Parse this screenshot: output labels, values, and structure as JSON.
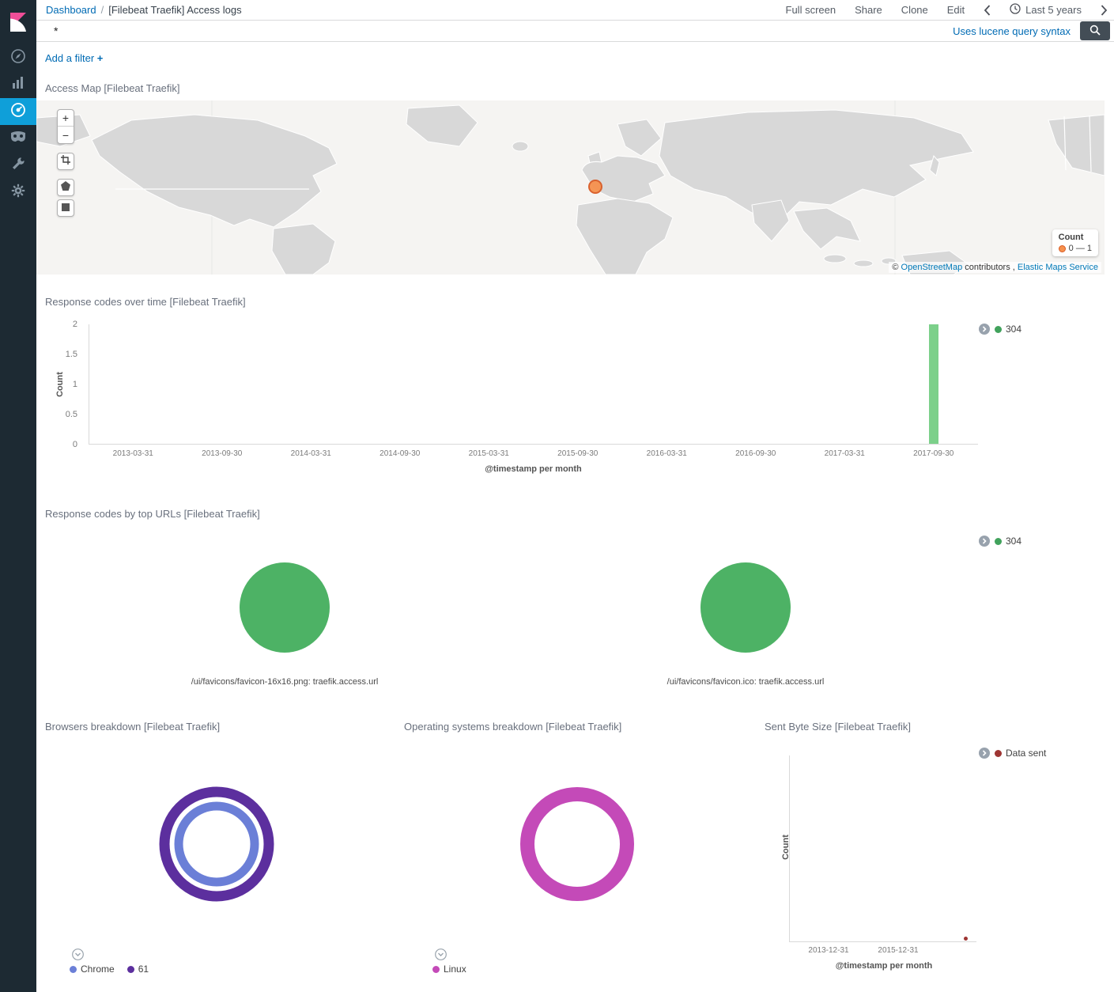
{
  "header": {
    "breadcrumb": {
      "root": "Dashboard",
      "separator": "/",
      "current": "[Filebeat Traefik] Access logs"
    },
    "actions": [
      {
        "label": "Full screen"
      },
      {
        "label": "Share"
      },
      {
        "label": "Clone"
      },
      {
        "label": "Edit"
      }
    ],
    "time_picker": {
      "label": "Last 5 years"
    }
  },
  "query_bar": {
    "value": "*",
    "hint": "Uses lucene query syntax"
  },
  "filter_bar": {
    "label": "Add a filter",
    "plus": "+"
  },
  "sidebar": {
    "icons": [
      "kibana-logo",
      "compass",
      "bar-chart",
      "dashboard",
      "timelion-mask",
      "wrench",
      "gear"
    ],
    "active": "dashboard",
    "active_color": "#0f9fd9"
  },
  "map_panel": {
    "title": "Access Map [Filebeat Traefik]",
    "zoom_in": "+",
    "zoom_out": "−",
    "marker_color": "#f6914d",
    "legend": {
      "title": "Count",
      "range_label": "0 — 1",
      "dot_color": "#f6914d"
    },
    "attribution": {
      "copyright": "©",
      "osm": "OpenStreetMap",
      "middle": "contributors ,",
      "elastic": "Elastic Maps Service"
    }
  },
  "chart_data": [
    {
      "id": "response_codes_over_time",
      "type": "bar",
      "title": "Response codes over time [Filebeat Traefik]",
      "xlabel": "@timestamp per month",
      "ylabel": "Count",
      "ylim": [
        0,
        2
      ],
      "yticks": [
        0,
        0.5,
        1,
        1.5,
        2
      ],
      "categories": [
        "2013-03-31",
        "2013-09-30",
        "2014-03-31",
        "2014-09-30",
        "2015-03-31",
        "2015-09-30",
        "2016-03-31",
        "2016-09-30",
        "2017-03-31",
        "2017-09-30"
      ],
      "series": [
        {
          "name": "304",
          "color": "#7cd08a",
          "values": [
            0,
            0,
            0,
            0,
            0,
            0,
            0,
            0,
            0,
            2
          ]
        }
      ],
      "grid": false,
      "legend": {
        "position": "right",
        "items": [
          {
            "label": "304",
            "color": "#41a25c"
          }
        ]
      }
    },
    {
      "id": "response_codes_by_top_urls",
      "type": "pie",
      "title": "Response codes by top URLs [Filebeat Traefik]",
      "pies": [
        {
          "label": "/ui/favicons/favicon-16x16.png: traefik.access.url",
          "slices": [
            {
              "name": "304",
              "value": 100,
              "color": "#4db265"
            }
          ]
        },
        {
          "label": "/ui/favicons/favicon.ico: traefik.access.url",
          "slices": [
            {
              "name": "304",
              "value": 100,
              "color": "#4db265"
            }
          ]
        }
      ],
      "legend": {
        "position": "right",
        "items": [
          {
            "label": "304",
            "color": "#41a25c"
          }
        ]
      }
    },
    {
      "id": "browsers_breakdown",
      "type": "pie",
      "subtype": "donut",
      "title": "Browsers breakdown [Filebeat Traefik]",
      "rings": [
        {
          "level": "browser",
          "slices": [
            {
              "name": "Chrome",
              "value": 100,
              "color": "#6b7fd7"
            }
          ]
        },
        {
          "level": "version",
          "slices": [
            {
              "name": "61",
              "value": 100,
              "color": "#5c2f9e"
            }
          ]
        }
      ],
      "legend": {
        "position": "bottom",
        "items": [
          {
            "label": "Chrome",
            "color": "#6b7fd7"
          },
          {
            "label": "61",
            "color": "#5c2f9e"
          }
        ]
      }
    },
    {
      "id": "os_breakdown",
      "type": "pie",
      "subtype": "donut",
      "title": "Operating systems breakdown [Filebeat Traefik]",
      "rings": [
        {
          "level": "os",
          "slices": [
            {
              "name": "Linux",
              "value": 100,
              "color": "#c44ab8"
            }
          ]
        }
      ],
      "legend": {
        "position": "bottom",
        "items": [
          {
            "label": "Linux",
            "color": "#c44ab8"
          }
        ]
      }
    },
    {
      "id": "sent_byte_size",
      "type": "line",
      "title": "Sent Byte Size [Filebeat Traefik]",
      "xlabel": "@timestamp per month",
      "ylabel": "Count",
      "xticks": [
        "2013-12-31",
        "2015-12-31"
      ],
      "series": [
        {
          "name": "Data sent",
          "color": "#9e3533",
          "points": [
            {
              "x": "2017-12-31",
              "y": 0
            }
          ]
        }
      ],
      "legend": {
        "position": "right",
        "items": [
          {
            "label": "Data sent",
            "color": "#9e3533"
          }
        ]
      }
    }
  ]
}
